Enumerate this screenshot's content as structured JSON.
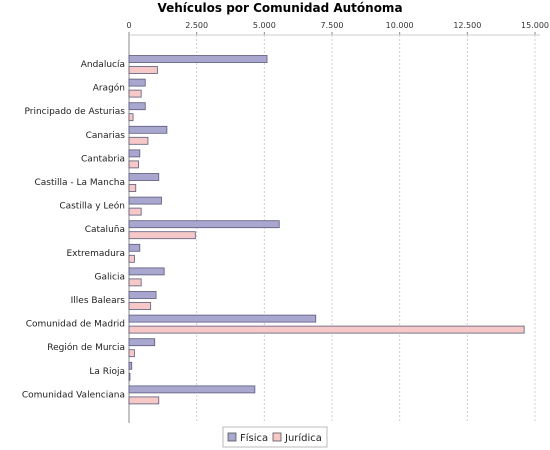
{
  "chart_data": {
    "type": "bar",
    "orientation": "horizontal",
    "title": "Vehículos por Comunidad Autónoma",
    "xlabel": "",
    "ylabel": "",
    "xlim": [
      0,
      15000
    ],
    "ticks": [
      0,
      2500,
      5000,
      7500,
      10000,
      12500,
      15000
    ],
    "tick_labels": [
      "0",
      "2.500",
      "5.000",
      "7.500",
      "10.000",
      "12.500",
      "15.000"
    ],
    "grid": true,
    "legend_position": "bottom",
    "categories": [
      "Andalucía",
      "Aragón",
      "Principado de Asturias",
      "Canarias",
      "Cantabria",
      "Castilla - La Mancha",
      "Castilla y León",
      "Cataluña",
      "Extremadura",
      "Galicia",
      "Illes Balears",
      "Comunidad de Madrid",
      "Región de Murcia",
      "La Rioja",
      "Comunidad Valenciana"
    ],
    "series": [
      {
        "name": "Física",
        "color": "#a9a7d0",
        "values": [
          5100,
          600,
          600,
          1400,
          400,
          1100,
          1200,
          5550,
          400,
          1300,
          1000,
          6900,
          950,
          100,
          4650
        ]
      },
      {
        "name": "Jurídica",
        "color": "#f7c8c8",
        "values": [
          1050,
          450,
          150,
          700,
          350,
          250,
          450,
          2450,
          200,
          450,
          800,
          14600,
          200,
          30,
          1100
        ]
      }
    ]
  }
}
